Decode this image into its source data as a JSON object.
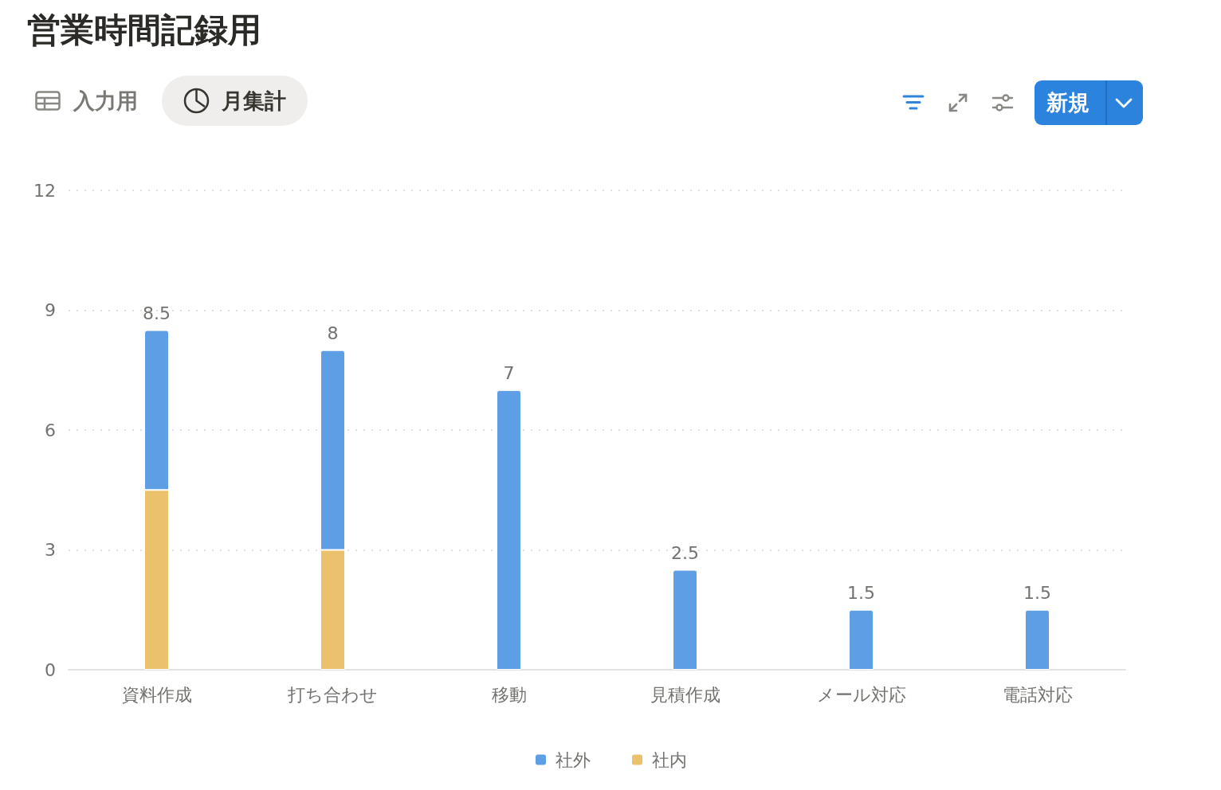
{
  "chart_data": {
    "type": "bar",
    "title": "営業時間記録用",
    "annotations": [
      "入力用",
      "月集計",
      "新規"
    ],
    "categories": [
      "資料作成",
      "打ち合わせ",
      "移動",
      "見積作成",
      "メール対応",
      "電話対応"
    ],
    "series": [
      {
        "name": "社内",
        "color": "#ebc26b",
        "values": [
          4.5,
          3,
          null,
          null,
          null,
          null
        ]
      },
      {
        "name": "社外",
        "color": "#5e9ee5",
        "values": [
          4,
          5,
          7,
          2.5,
          1.5,
          1.5
        ]
      }
    ],
    "stacked": true,
    "totals": [
      "8.5",
      "8",
      "7",
      "2.5",
      "1.5",
      "1.5"
    ],
    "ylim": [
      0,
      12
    ],
    "yticks": [
      0,
      3,
      6,
      9,
      12
    ],
    "grid": "y",
    "legend": "bottom"
  }
}
